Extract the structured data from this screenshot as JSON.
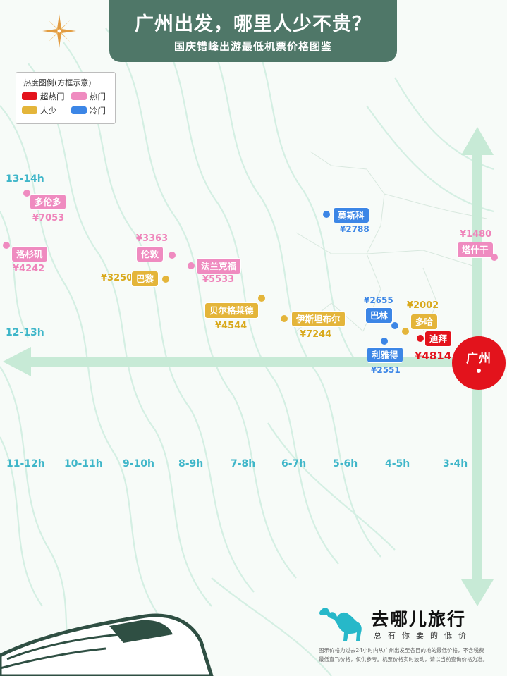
{
  "header": {
    "title": "广州出发，哪里人少不贵？",
    "subtitle": "国庆错峰出游最低机票价格图鉴"
  },
  "legend": {
    "title": "热度图例(方框示意)",
    "items": [
      {
        "label": "超热门",
        "color": "#e3131c"
      },
      {
        "label": "热门",
        "color": "#ef8bc0"
      },
      {
        "label": "人少",
        "color": "#e4b53a"
      },
      {
        "label": "冷门",
        "color": "#3c86e6"
      }
    ]
  },
  "axis": {
    "y_labels": [
      "13-14h",
      "12-13h"
    ],
    "x_labels": [
      "11-12h",
      "10-11h",
      "9-10h",
      "8-9h",
      "7-8h",
      "6-7h",
      "5-6h",
      "4-5h",
      "3-4h"
    ]
  },
  "origin": {
    "label": "广州"
  },
  "destinations": [
    {
      "name": "多伦多",
      "price": "¥7053",
      "heat": "热门"
    },
    {
      "name": "洛杉矶",
      "price": "¥4242",
      "heat": "热门"
    },
    {
      "name": "伦敦",
      "price": "¥3363",
      "heat": "热门"
    },
    {
      "name": "巴黎",
      "price": "¥3250",
      "heat": "人少"
    },
    {
      "name": "法兰克福",
      "price": "¥5533",
      "heat": "热门"
    },
    {
      "name": "贝尔格莱德",
      "price": "¥4544",
      "heat": "人少"
    },
    {
      "name": "伊斯坦布尔",
      "price": "¥7244",
      "heat": "人少"
    },
    {
      "name": "莫斯科",
      "price": "¥2788",
      "heat": "冷门"
    },
    {
      "name": "塔什干",
      "price": "¥1480",
      "heat": "热门"
    },
    {
      "name": "巴林",
      "price": "¥2655",
      "heat": "冷门"
    },
    {
      "name": "多哈",
      "price": "¥2002",
      "heat": "人少"
    },
    {
      "name": "迪拜",
      "price": "¥4814",
      "heat": "超热门"
    },
    {
      "name": "利雅得",
      "price": "¥2551",
      "heat": "冷门"
    }
  ],
  "brand": {
    "name": "去哪儿旅行",
    "slogan": "总有你要的低价"
  },
  "footer": {
    "line1": "图示价格为过去24小时内从广州出发至各目的地的最低价格，不含税费",
    "line2": "最低直飞价格，仅供参考。机票价格实时波动，请以当前查询价格为准。"
  }
}
